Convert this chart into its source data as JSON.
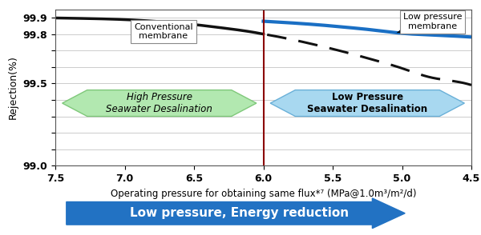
{
  "title": "",
  "xlabel": "Operating pressure for obtaining same flux*⁷ (MPa@1.0m³/m²/d)",
  "ylabel": "Rejection(%)",
  "xlim": [
    7.5,
    4.5
  ],
  "ylim": [
    99.0,
    99.95
  ],
  "yticks": [
    99.0,
    99.1,
    99.2,
    99.3,
    99.4,
    99.5,
    99.6,
    99.7,
    99.8,
    99.9
  ],
  "ytick_labels": [
    "99.0",
    "",
    "",
    "",
    "",
    "99.5",
    "",
    "",
    "99.8",
    "99.9"
  ],
  "xticks": [
    7.5,
    7.0,
    6.5,
    6.0,
    5.5,
    5.0,
    4.5
  ],
  "vline_x": 6.0,
  "vline_color": "#8B0000",
  "conventional_x": [
    7.5,
    7.3,
    7.1,
    6.9,
    6.7,
    6.5,
    6.3,
    6.1,
    6.0
  ],
  "conventional_y": [
    99.898,
    99.895,
    99.891,
    99.884,
    99.873,
    99.858,
    99.838,
    99.815,
    99.8
  ],
  "dashed_x": [
    6.0,
    5.8,
    5.6,
    5.4,
    5.2,
    5.0,
    4.8,
    4.6,
    4.5
  ],
  "dashed_y": [
    99.8,
    99.768,
    99.73,
    99.688,
    99.642,
    99.592,
    99.538,
    99.51,
    99.49
  ],
  "lp_membrane_x": [
    6.0,
    5.8,
    5.6,
    5.4,
    5.2,
    5.0,
    4.8,
    4.6,
    4.5
  ],
  "lp_membrane_y": [
    99.878,
    99.868,
    99.856,
    99.841,
    99.824,
    99.805,
    99.795,
    99.787,
    99.782
  ],
  "conventional_color": "#111111",
  "lp_membrane_color": "#1a6fc4",
  "dashed_color": "#111111",
  "arrow_hp_color": "#b2e8b0",
  "arrow_hp_edge": "#7fc87a",
  "arrow_lp_color": "#a8d8f0",
  "arrow_lp_edge": "#6ab0d8",
  "arrow_bottom_color": "#2272c3",
  "vline_linewidth": 1.5,
  "conv_linewidth": 2.5,
  "lp_linewidth": 3.0,
  "dash_linewidth": 2.2,
  "background_color": "#ffffff",
  "grid_color": "#cccccc",
  "label_conventional": "Conventional\nmembrane",
  "label_lp": "Low pressure\nmembrane",
  "label_hp_arrow": "High Pressure\nSeawater Desalination",
  "label_lp_arrow": "Low Pressure\nSeawater Desalination",
  "label_bottom_arrow": "Low pressure, Energy reduction",
  "figsize": [
    6.0,
    2.94
  ],
  "dpi": 100
}
